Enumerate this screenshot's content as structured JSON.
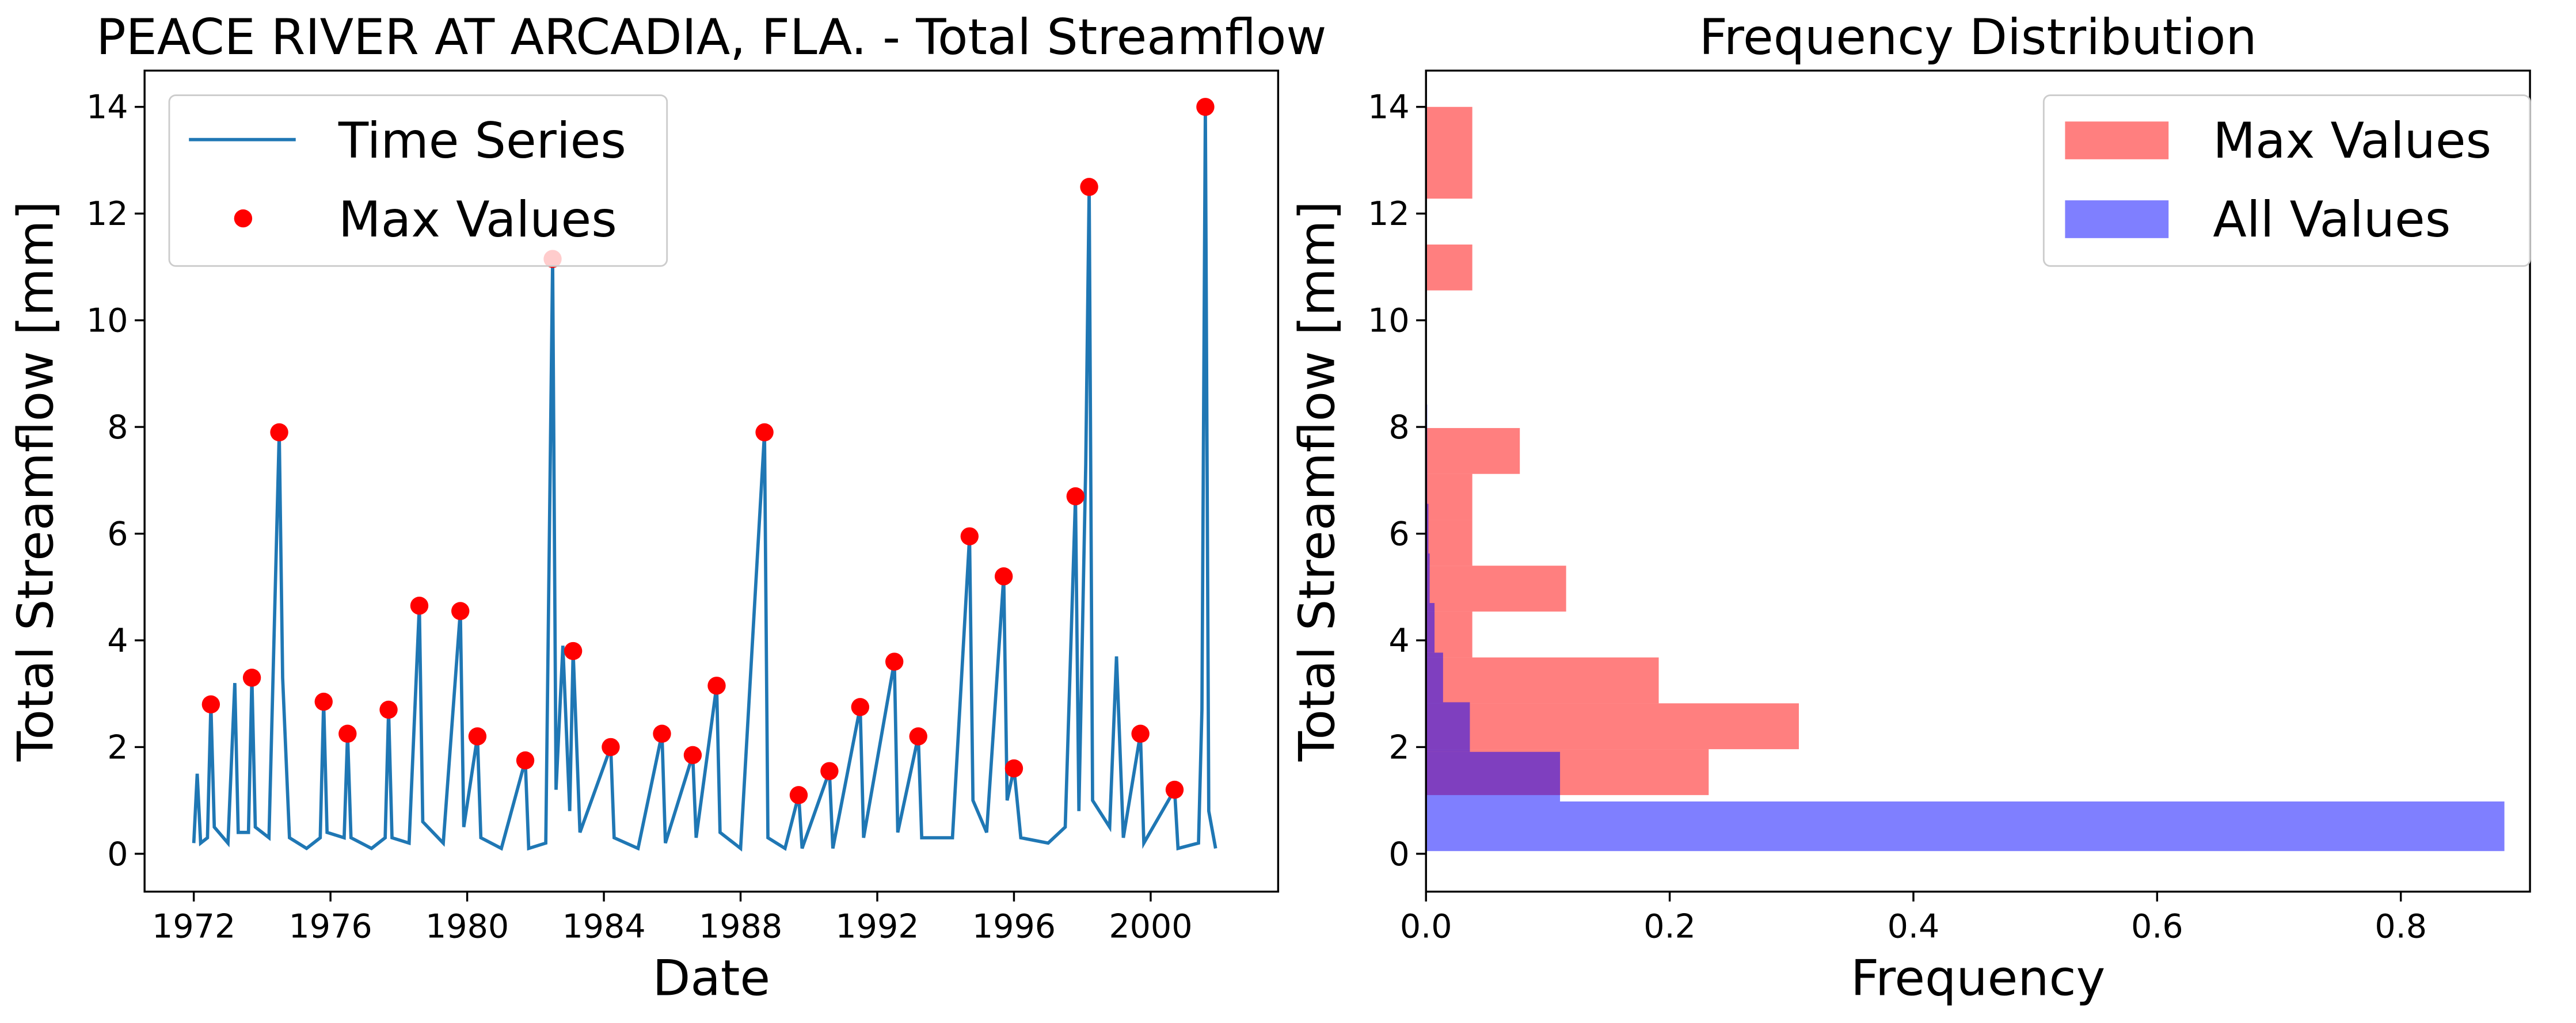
{
  "chart_data": [
    {
      "type": "line",
      "title": "PEACE RIVER AT ARCADIA, FLA. - Total Streamflow",
      "x_label": "Date",
      "y_label": "Total Streamflow [mm]",
      "xlim": [
        1970.56,
        2003.73
      ],
      "xticks": [
        1972,
        1976,
        1980,
        1984,
        1988,
        1992,
        1996,
        2000
      ],
      "ylim": [
        -0.71,
        14.68
      ],
      "yticks": [
        0,
        2,
        4,
        6,
        8,
        10,
        12,
        14
      ],
      "legend": "upper left",
      "series": [
        {
          "name": "Time Series",
          "type": "line",
          "color": "#1f77b4",
          "x": [
            1972.0,
            1972.1,
            1972.2,
            1972.4,
            1972.5,
            1972.6,
            1973.0,
            1973.2,
            1973.3,
            1973.6,
            1973.7,
            1973.8,
            1974.2,
            1974.5,
            1974.6,
            1974.8,
            1975.3,
            1975.7,
            1975.8,
            1975.9,
            1976.4,
            1976.5,
            1976.6,
            1977.2,
            1977.6,
            1977.7,
            1977.8,
            1978.3,
            1978.6,
            1978.7,
            1979.3,
            1979.8,
            1979.9,
            1980.3,
            1980.4,
            1981.0,
            1981.7,
            1981.8,
            1982.3,
            1982.5,
            1982.6,
            1982.8,
            1983.0,
            1983.1,
            1983.3,
            1984.2,
            1984.3,
            1985.0,
            1985.7,
            1985.8,
            1986.6,
            1986.7,
            1987.3,
            1987.4,
            1988.0,
            1988.7,
            1988.8,
            1989.3,
            1989.7,
            1989.8,
            1990.6,
            1990.7,
            1991.5,
            1991.6,
            1992.5,
            1992.6,
            1993.2,
            1993.3,
            1994.2,
            1994.7,
            1994.8,
            1995.2,
            1995.7,
            1995.8,
            1996.0,
            1996.2,
            1997.0,
            1997.5,
            1997.8,
            1997.9,
            1998.1,
            1998.2,
            1998.3,
            1998.8,
            1999.0,
            1999.2,
            1999.7,
            1999.8,
            2000.7,
            2000.8,
            2001.4,
            2001.5,
            2001.6,
            2001.7,
            2001.9
          ],
          "values": [
            0.2,
            1.5,
            0.2,
            0.3,
            2.8,
            0.5,
            0.2,
            3.2,
            0.4,
            0.4,
            3.3,
            0.5,
            0.3,
            7.9,
            3.3,
            0.3,
            0.1,
            0.3,
            2.85,
            0.4,
            0.3,
            2.25,
            0.3,
            0.1,
            0.3,
            2.7,
            0.3,
            0.2,
            4.65,
            0.6,
            0.2,
            4.55,
            0.5,
            2.2,
            0.3,
            0.1,
            1.75,
            0.1,
            0.2,
            11.15,
            1.2,
            3.9,
            0.8,
            3.8,
            0.4,
            2.0,
            0.3,
            0.1,
            2.25,
            0.2,
            1.85,
            0.3,
            3.15,
            0.4,
            0.1,
            7.9,
            0.3,
            0.1,
            1.1,
            0.1,
            1.55,
            0.1,
            2.75,
            0.3,
            3.6,
            0.4,
            2.2,
            0.3,
            0.3,
            5.95,
            1.0,
            0.4,
            5.2,
            1.0,
            1.6,
            0.3,
            0.2,
            0.5,
            6.7,
            0.8,
            7.3,
            12.5,
            1.0,
            0.5,
            3.7,
            0.3,
            2.25,
            0.2,
            1.2,
            0.1,
            0.2,
            2.7,
            14.0,
            0.8,
            0.1
          ]
        },
        {
          "name": "Max Values",
          "type": "scatter",
          "color": "#ff0000",
          "x": [
            1972.5,
            1973.7,
            1974.5,
            1975.8,
            1976.5,
            1977.7,
            1978.6,
            1979.8,
            1980.3,
            1981.7,
            1982.5,
            1983.1,
            1984.2,
            1985.7,
            1986.6,
            1987.3,
            1988.7,
            1989.7,
            1990.6,
            1991.5,
            1992.5,
            1993.2,
            1994.7,
            1995.7,
            1996.0,
            1997.8,
            1998.2,
            1999.7,
            2000.7,
            2001.6
          ],
          "values": [
            2.8,
            3.3,
            7.9,
            2.85,
            2.25,
            2.7,
            4.65,
            4.55,
            2.2,
            1.75,
            11.15,
            3.8,
            2.0,
            2.25,
            1.85,
            3.15,
            7.9,
            1.1,
            1.55,
            2.75,
            3.6,
            2.2,
            5.95,
            5.2,
            1.6,
            6.7,
            12.5,
            2.25,
            1.2,
            14.0
          ]
        }
      ]
    },
    {
      "type": "histogram",
      "orientation": "horizontal",
      "title": "Frequency Distribution",
      "x_label": "Frequency",
      "y_label": "Total Streamflow [mm]",
      "xlim": [
        0,
        0.906
      ],
      "xticks": [
        {
          "value": 0,
          "label": "0.0"
        },
        0.2,
        0.4,
        0.6,
        0.8
      ],
      "ylim": [
        -0.71,
        14.68
      ],
      "yticks": [
        0,
        2,
        4,
        6,
        8,
        10,
        12,
        14
      ],
      "legend": "upper right",
      "alpha": 0.5,
      "series": [
        {
          "name": "Max Values",
          "color": "#ff0000",
          "bins": [
            1.1,
            1.96,
            2.82,
            3.68,
            4.54,
            5.4,
            6.26,
            7.12,
            7.98,
            8.84,
            9.7,
            10.56,
            11.42,
            12.28,
            13.14,
            14.0
          ],
          "values": [
            0.232,
            0.306,
            0.191,
            0.038,
            0.115,
            0.038,
            0.038,
            0.077,
            0,
            0,
            0,
            0.038,
            0,
            0.038,
            0.038
          ]
        },
        {
          "name": "All Values",
          "color": "#0000ff",
          "bins": [
            0.05,
            0.98,
            1.91,
            2.84,
            3.77,
            4.7,
            5.63,
            6.56,
            7.49,
            8.42,
            9.35,
            10.28,
            11.21,
            12.14,
            13.07,
            14.0
          ],
          "values": [
            0.885,
            0.11,
            0.036,
            0.014,
            0.007,
            0.003,
            0.002,
            0.001,
            0.001,
            0,
            0,
            0,
            0,
            0,
            0
          ]
        }
      ]
    }
  ]
}
